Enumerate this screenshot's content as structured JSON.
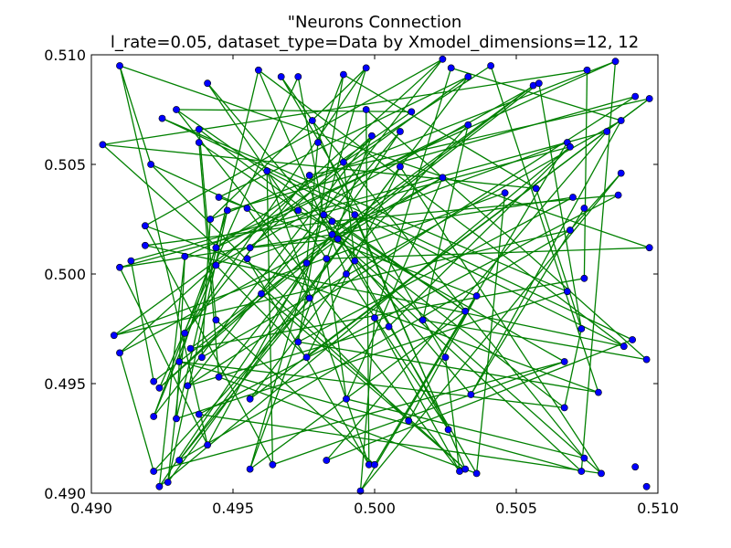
{
  "chart_data": {
    "type": "scatter",
    "title_line1": "\"Neurons Connection",
    "title_line2": "l_rate=0.05, dataset_type=Data by Xmodel_dimensions=12, 12",
    "xlabel": "",
    "ylabel": "",
    "xlim": [
      0.49,
      0.51
    ],
    "ylim": [
      0.49,
      0.51
    ],
    "x_ticks": [
      "0.490",
      "0.495",
      "0.500",
      "0.505",
      "0.510"
    ],
    "y_ticks": [
      "0.490",
      "0.495",
      "0.500",
      "0.505",
      "0.510"
    ],
    "grid": false,
    "legend": "none",
    "point_color": "#0000ff",
    "line_color": "#008000",
    "points": [
      [
        0.491,
        0.5095
      ],
      [
        0.4941,
        0.5087
      ],
      [
        0.4959,
        0.5093
      ],
      [
        0.4967,
        0.509
      ],
      [
        0.4973,
        0.509
      ],
      [
        0.4989,
        0.5091
      ],
      [
        0.4997,
        0.5094
      ],
      [
        0.5024,
        0.5098
      ],
      [
        0.5027,
        0.5094
      ],
      [
        0.5033,
        0.509
      ],
      [
        0.5041,
        0.5095
      ],
      [
        0.5056,
        0.5086
      ],
      [
        0.5058,
        0.5087
      ],
      [
        0.5075,
        0.5093
      ],
      [
        0.5085,
        0.5097
      ],
      [
        0.5092,
        0.5081
      ],
      [
        0.5097,
        0.508
      ],
      [
        0.4925,
        0.5071
      ],
      [
        0.493,
        0.5075
      ],
      [
        0.4938,
        0.5066
      ],
      [
        0.4938,
        0.506
      ],
      [
        0.4978,
        0.507
      ],
      [
        0.498,
        0.506
      ],
      [
        0.4997,
        0.5075
      ],
      [
        0.4999,
        0.5063
      ],
      [
        0.5009,
        0.5065
      ],
      [
        0.5013,
        0.5074
      ],
      [
        0.5033,
        0.5068
      ],
      [
        0.5068,
        0.506
      ],
      [
        0.5069,
        0.5058
      ],
      [
        0.5082,
        0.5065
      ],
      [
        0.5087,
        0.507
      ],
      [
        0.4904,
        0.5059
      ],
      [
        0.4921,
        0.505
      ],
      [
        0.4962,
        0.5047
      ],
      [
        0.4977,
        0.5045
      ],
      [
        0.4989,
        0.5051
      ],
      [
        0.5009,
        0.5049
      ],
      [
        0.5024,
        0.5044
      ],
      [
        0.5046,
        0.5037
      ],
      [
        0.5057,
        0.5039
      ],
      [
        0.5087,
        0.5046
      ],
      [
        0.5086,
        0.5036
      ],
      [
        0.4945,
        0.5035
      ],
      [
        0.4948,
        0.5029
      ],
      [
        0.4955,
        0.503
      ],
      [
        0.4973,
        0.5029
      ],
      [
        0.4982,
        0.5027
      ],
      [
        0.4985,
        0.5024
      ],
      [
        0.4993,
        0.5027
      ],
      [
        0.507,
        0.5035
      ],
      [
        0.5074,
        0.503
      ],
      [
        0.4942,
        0.5025
      ],
      [
        0.4919,
        0.5022
      ],
      [
        0.4919,
        0.5013
      ],
      [
        0.4985,
        0.5018
      ],
      [
        0.4987,
        0.5016
      ],
      [
        0.5069,
        0.502
      ],
      [
        0.5097,
        0.5012
      ],
      [
        0.491,
        0.5003
      ],
      [
        0.4914,
        0.5006
      ],
      [
        0.4933,
        0.5008
      ],
      [
        0.4944,
        0.5012
      ],
      [
        0.4944,
        0.5004
      ],
      [
        0.4955,
        0.5007
      ],
      [
        0.4956,
        0.5012
      ],
      [
        0.4983,
        0.5007
      ],
      [
        0.4976,
        0.5005
      ],
      [
        0.4993,
        0.5006
      ],
      [
        0.499,
        0.5
      ],
      [
        0.496,
        0.4991
      ],
      [
        0.4977,
        0.4989
      ],
      [
        0.5,
        0.498
      ],
      [
        0.5005,
        0.4976
      ],
      [
        0.5032,
        0.4983
      ],
      [
        0.5036,
        0.499
      ],
      [
        0.5068,
        0.4992
      ],
      [
        0.5074,
        0.4998
      ],
      [
        0.4908,
        0.4972
      ],
      [
        0.4933,
        0.4973
      ],
      [
        0.4944,
        0.4979
      ],
      [
        0.4973,
        0.4969
      ],
      [
        0.5017,
        0.4979
      ],
      [
        0.5073,
        0.4975
      ],
      [
        0.491,
        0.4964
      ],
      [
        0.4935,
        0.4966
      ],
      [
        0.4931,
        0.496
      ],
      [
        0.4939,
        0.4962
      ],
      [
        0.4976,
        0.4962
      ],
      [
        0.5025,
        0.4962
      ],
      [
        0.5067,
        0.496
      ],
      [
        0.5088,
        0.4967
      ],
      [
        0.5091,
        0.497
      ],
      [
        0.5096,
        0.4961
      ],
      [
        0.4922,
        0.4951
      ],
      [
        0.4924,
        0.4948
      ],
      [
        0.4934,
        0.4949
      ],
      [
        0.4945,
        0.4953
      ],
      [
        0.4956,
        0.4943
      ],
      [
        0.499,
        0.4943
      ],
      [
        0.5034,
        0.4945
      ],
      [
        0.5067,
        0.4939
      ],
      [
        0.5079,
        0.4946
      ],
      [
        0.4922,
        0.4935
      ],
      [
        0.493,
        0.4934
      ],
      [
        0.4938,
        0.4936
      ],
      [
        0.5012,
        0.4933
      ],
      [
        0.5026,
        0.4929
      ],
      [
        0.4941,
        0.4922
      ],
      [
        0.4931,
        0.4915
      ],
      [
        0.4922,
        0.491
      ],
      [
        0.4924,
        0.4903
      ],
      [
        0.4927,
        0.4905
      ],
      [
        0.4956,
        0.4911
      ],
      [
        0.4964,
        0.4913
      ],
      [
        0.4983,
        0.4915
      ],
      [
        0.4995,
        0.4901
      ],
      [
        0.4998,
        0.4913
      ],
      [
        0.5,
        0.4913
      ],
      [
        0.503,
        0.491
      ],
      [
        0.5032,
        0.4911
      ],
      [
        0.5036,
        0.4909
      ],
      [
        0.5073,
        0.491
      ],
      [
        0.5074,
        0.4916
      ],
      [
        0.508,
        0.4909
      ],
      [
        0.5092,
        0.4912
      ],
      [
        0.5096,
        0.4903
      ]
    ],
    "edges": [
      [
        0,
        108
      ],
      [
        0,
        58
      ],
      [
        1,
        100
      ],
      [
        1,
        66
      ],
      [
        2,
        69
      ],
      [
        2,
        104
      ],
      [
        3,
        21
      ],
      [
        3,
        89
      ],
      [
        4,
        47
      ],
      [
        4,
        95
      ],
      [
        5,
        81
      ],
      [
        5,
        22
      ],
      [
        6,
        113
      ],
      [
        6,
        52
      ],
      [
        7,
        53
      ],
      [
        7,
        84
      ],
      [
        8,
        31
      ],
      [
        8,
        72
      ],
      [
        9,
        43
      ],
      [
        9,
        109
      ],
      [
        10,
        36
      ],
      [
        10,
        102
      ],
      [
        11,
        85
      ],
      [
        11,
        55
      ],
      [
        12,
        63
      ],
      [
        12,
        94
      ],
      [
        13,
        32
      ],
      [
        13,
        77
      ],
      [
        14,
        61
      ],
      [
        14,
        122
      ],
      [
        15,
        96
      ],
      [
        15,
        44
      ],
      [
        16,
        98
      ],
      [
        16,
        35
      ],
      [
        17,
        92
      ],
      [
        17,
        76
      ],
      [
        18,
        26
      ],
      [
        18,
        119
      ],
      [
        19,
        80
      ],
      [
        19,
        101
      ],
      [
        20,
        97
      ],
      [
        20,
        46
      ],
      [
        21,
        107
      ],
      [
        22,
        67
      ],
      [
        23,
        117
      ],
      [
        23,
        93
      ],
      [
        24,
        65
      ],
      [
        24,
        103
      ],
      [
        25,
        70
      ],
      [
        25,
        111
      ],
      [
        26,
        62
      ],
      [
        27,
        82
      ],
      [
        27,
        110
      ],
      [
        28,
        64
      ],
      [
        28,
        118
      ],
      [
        29,
        73
      ],
      [
        29,
        59
      ],
      [
        30,
        60
      ],
      [
        30,
        115
      ],
      [
        31,
        87
      ],
      [
        32,
        120
      ],
      [
        32,
        40
      ],
      [
        33,
        45
      ],
      [
        33,
        106
      ],
      [
        34,
        91
      ],
      [
        34,
        114
      ],
      [
        35,
        79
      ],
      [
        36,
        68
      ],
      [
        37,
        88
      ],
      [
        37,
        112
      ],
      [
        38,
        99
      ],
      [
        38,
        56
      ],
      [
        39,
        78
      ],
      [
        39,
        121
      ],
      [
        40,
        83
      ],
      [
        41,
        57
      ],
      [
        41,
        116
      ],
      [
        42,
        48
      ],
      [
        42,
        105
      ],
      [
        43,
        75
      ],
      [
        44,
        86
      ],
      [
        45,
        71
      ],
      [
        46,
        90
      ],
      [
        47,
        74
      ],
      [
        48,
        54
      ],
      [
        49,
        95
      ],
      [
        50,
        59
      ],
      [
        50,
        81
      ],
      [
        51,
        100
      ],
      [
        52,
        87
      ],
      [
        53,
        102
      ],
      [
        54,
        91
      ],
      [
        55,
        124
      ],
      [
        56,
        65
      ],
      [
        57,
        78
      ],
      [
        58,
        66
      ],
      [
        60,
        94
      ],
      [
        61,
        111
      ],
      [
        62,
        103
      ],
      [
        63,
        88
      ],
      [
        64,
        117
      ],
      [
        67,
        108
      ],
      [
        68,
        98
      ],
      [
        69,
        107
      ],
      [
        70,
        120
      ],
      [
        71,
        109
      ],
      [
        72,
        116
      ],
      [
        73,
        96
      ],
      [
        74,
        113
      ],
      [
        75,
        106
      ],
      [
        76,
        104
      ],
      [
        77,
        85
      ],
      [
        79,
        112
      ],
      [
        80,
        118
      ],
      [
        82,
        93
      ],
      [
        83,
        101
      ],
      [
        84,
        110
      ],
      [
        86,
        122
      ],
      [
        89,
        119
      ],
      [
        90,
        114
      ],
      [
        92,
        115
      ],
      [
        97,
        121
      ],
      [
        99,
        123
      ],
      [
        105,
        124
      ],
      [
        0,
        33
      ],
      [
        5,
        40
      ],
      [
        9,
        78
      ],
      [
        14,
        52
      ],
      [
        16,
        88
      ],
      [
        21,
        123
      ],
      [
        27,
        62
      ],
      [
        34,
        117
      ],
      [
        47,
        121
      ],
      [
        57,
        109
      ],
      [
        63,
        103
      ],
      [
        70,
        95
      ],
      [
        31,
        100
      ],
      [
        44,
        112
      ],
      [
        55,
        97
      ],
      [
        7,
        96
      ],
      [
        12,
        83
      ],
      [
        24,
        113
      ],
      [
        38,
        84
      ],
      [
        49,
        120
      ],
      [
        59,
        108
      ],
      [
        66,
        99
      ],
      [
        72,
        119
      ],
      [
        86,
        101
      ],
      [
        2,
        91
      ],
      [
        6,
        79
      ],
      [
        18,
        74
      ],
      [
        29,
        111
      ],
      [
        37,
        124
      ],
      [
        48,
        107
      ],
      [
        53,
        114
      ],
      [
        61,
        104
      ],
      [
        68,
        122
      ],
      [
        75,
        116
      ],
      [
        81,
        102
      ],
      [
        90,
        110
      ]
    ]
  }
}
